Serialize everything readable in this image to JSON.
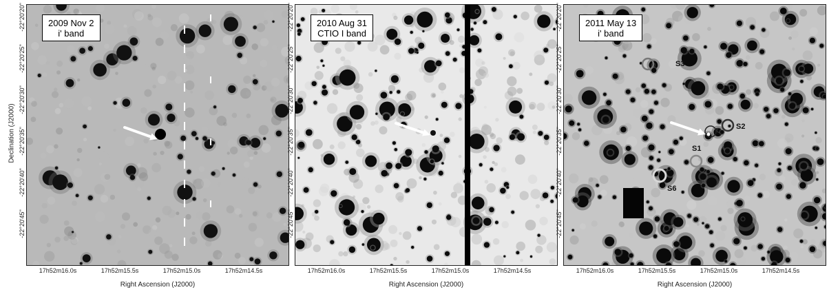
{
  "axes": {
    "ylabel": "Declination (J2000)",
    "xlabel": "Right Ascension (J2000)",
    "dec_ticks": [
      "-22°20'20\"",
      "-22°20'25\"",
      "-22°20'30\"",
      "-22°20'35\"",
      "-22°20'40\"",
      "-22°20'45\""
    ],
    "ra_ticks": [
      "17h52m16.0s",
      "17h52m15.5s",
      "17h52m15.0s",
      "17h52m14.5s"
    ]
  },
  "panels": [
    {
      "id": "p1",
      "date": "2009 Nov 2",
      "band": "i' band",
      "style": "gray"
    },
    {
      "id": "p2",
      "date": "2010 Aug 31",
      "band": "CTIO I band",
      "style": "light"
    },
    {
      "id": "p3",
      "date": "2011 May 13",
      "band": "i' band",
      "style": "dense"
    }
  ],
  "source_labels": [
    "S1",
    "S2",
    "S3",
    "S6"
  ]
}
